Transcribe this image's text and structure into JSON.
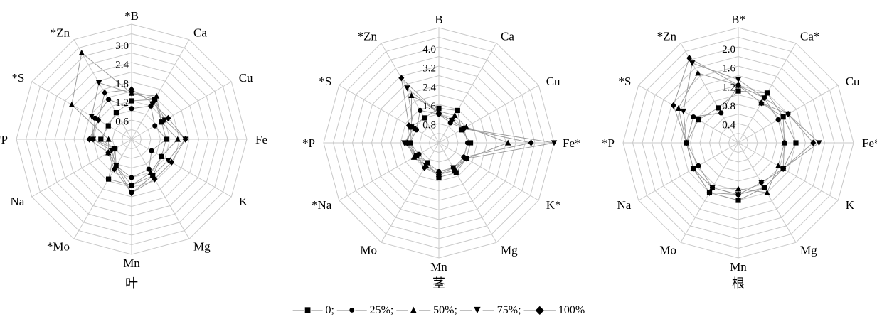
{
  "legend": {
    "text": "—■— 0; —●— 25%; —▲— 50%; —▼— 75%; —◆— 100%",
    "series": [
      {
        "name": "0",
        "marker": "square"
      },
      {
        "name": "25%",
        "marker": "circle"
      },
      {
        "name": "50%",
        "marker": "triangle-up"
      },
      {
        "name": "75%",
        "marker": "triangle-down"
      },
      {
        "name": "100%",
        "marker": "diamond"
      }
    ]
  },
  "chart_data": [
    {
      "type": "radar",
      "title": "叶",
      "max": 3.0,
      "ticks": [
        "0.6",
        "1.2",
        "1.8",
        "2.4",
        "3.0"
      ],
      "axes": [
        "*B",
        "Ca",
        "Cu",
        "Fe",
        "K",
        "Mg",
        "Mn",
        "*Mo",
        "Na",
        "*P",
        "*S",
        "*Zn"
      ],
      "series": [
        {
          "name": "0",
          "values": [
            1.0,
            1.2,
            0.9,
            0.9,
            0.9,
            1.1,
            1.2,
            1.2,
            0.5,
            0.8,
            0.7,
            0.8
          ]
        },
        {
          "name": "25%",
          "values": [
            0.8,
            1.0,
            0.7,
            0.9,
            0.6,
            0.9,
            1.0,
            0.8,
            0.5,
            1.0,
            1.1,
            1.2
          ]
        },
        {
          "name": "50%",
          "values": [
            1.2,
            1.3,
            0.9,
            1.2,
            0.9,
            1.0,
            1.2,
            0.8,
            0.7,
            0.6,
            1.8,
            2.6
          ]
        },
        {
          "name": "75%",
          "values": [
            1.2,
            1.2,
            1.0,
            1.4,
            1.1,
            1.1,
            1.4,
            0.8,
            0.6,
            1.0,
            1.2,
            1.7
          ]
        },
        {
          "name": "100%",
          "values": [
            1.3,
            1.1,
            1.1,
            1.4,
            1.2,
            1.2,
            1.4,
            0.9,
            0.7,
            1.1,
            1.0,
            1.4
          ]
        }
      ]
    },
    {
      "type": "radar",
      "title": "茎",
      "max": 4.0,
      "ticks": [
        "0.8",
        "1.6",
        "2.4",
        "3.2",
        "4.0"
      ],
      "axes": [
        "B",
        "Ca",
        "Cu",
        "Fe*",
        "K*",
        "Mg",
        "Mn",
        "Mo",
        "*Na",
        "*P",
        "*S",
        "*Zn"
      ],
      "series": [
        {
          "name": "0",
          "values": [
            1.2,
            1.3,
            0.9,
            1.1,
            1.1,
            1.2,
            1.2,
            0.8,
            0.9,
            1.0,
            1.1,
            1.0
          ]
        },
        {
          "name": "25%",
          "values": [
            1.0,
            0.8,
            1.0,
            1.0,
            1.0,
            1.0,
            1.0,
            0.8,
            0.8,
            1.0,
            0.9,
            1.3
          ]
        },
        {
          "name": "50%",
          "values": [
            1.1,
            1.1,
            1.1,
            2.4,
            1.1,
            1.1,
            1.1,
            0.9,
            1.0,
            1.1,
            1.1,
            1.9
          ]
        },
        {
          "name": "75%",
          "values": [
            1.0,
            0.9,
            1.0,
            4.0,
            1.1,
            1.0,
            1.1,
            0.9,
            0.9,
            1.2,
            1.0,
            2.2
          ]
        },
        {
          "name": "100%",
          "values": [
            1.0,
            0.9,
            1.0,
            3.2,
            1.0,
            1.1,
            1.1,
            1.0,
            0.9,
            1.1,
            1.2,
            2.6
          ]
        }
      ]
    },
    {
      "type": "radar",
      "title": "根",
      "max": 2.0,
      "ticks": [
        "0.4",
        "0.8",
        "1.2",
        "1.6",
        "2.0"
      ],
      "axes": [
        "B*",
        "Ca*",
        "Cu",
        "Fe*",
        "K",
        "Mg",
        "Mn",
        "Mo",
        "Na",
        "*P",
        "*S",
        "*Zn"
      ],
      "series": [
        {
          "name": "0",
          "values": [
            0.9,
            1.0,
            0.9,
            1.0,
            0.9,
            0.9,
            1.0,
            1.0,
            0.9,
            0.9,
            0.8,
            0.7
          ]
        },
        {
          "name": "25%",
          "values": [
            1.0,
            0.9,
            0.8,
            0.8,
            0.9,
            0.9,
            0.9,
            0.9,
            0.8,
            0.9,
            0.9,
            0.6
          ]
        },
        {
          "name": "50%",
          "values": [
            1.0,
            0.8,
            0.9,
            0.8,
            0.8,
            1.0,
            0.8,
            0.9,
            0.9,
            0.9,
            1.2,
            1.4
          ]
        },
        {
          "name": "75%",
          "values": [
            1.1,
            0.9,
            1.0,
            1.4,
            0.9,
            0.8,
            0.9,
            0.9,
            0.9,
            0.9,
            1.1,
            1.6
          ]
        },
        {
          "name": "100%",
          "values": [
            1.0,
            0.8,
            1.0,
            1.3,
            0.9,
            0.8,
            0.9,
            1.0,
            0.9,
            0.9,
            1.3,
            1.7
          ]
        }
      ]
    }
  ]
}
